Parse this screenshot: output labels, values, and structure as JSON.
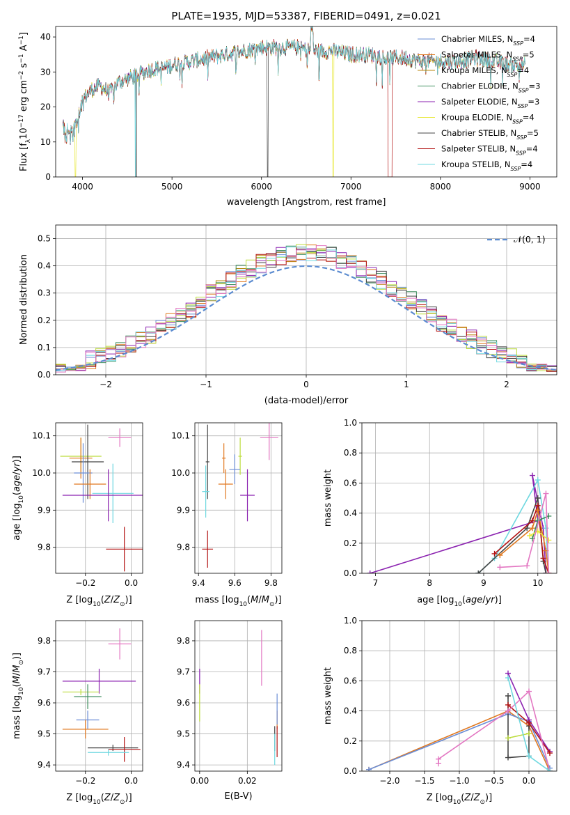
{
  "figure": {
    "title": "PLATE=1935, MJD=53387, FIBERID=0491, z=0.021"
  },
  "series_colors": {
    "Chabrier MILES": "#6a8dd6",
    "Salpeter MILES": "#e0781f",
    "Kroupa MILES": "#b8860b",
    "Chabrier ELODIE": "#3e8e5e",
    "Salpeter ELODIE": "#8b22b0",
    "Kroupa ELODIE": "#e8e838",
    "Chabrier STELIB": "#444444",
    "Salpeter STELIB": "#b31313",
    "Kroupa STELIB": "#6fd8e0",
    "pink": "#e377c2",
    "lime": "#bcdc3c"
  },
  "chart_data": [
    {
      "id": "spectrum",
      "type": "line",
      "title": "PLATE=1935, MJD=53387, FIBERID=0491, z=0.021",
      "xlabel": "wavelength [Angstrom, rest frame]",
      "ylabel": "Flux [f_λ 10^-17 erg cm^-2 s^-1 A^-1]",
      "xlim": [
        3700,
        9300
      ],
      "ylim": [
        0,
        43
      ],
      "xticks": [
        4000,
        5000,
        6000,
        7000,
        8000,
        9000
      ],
      "yticks": [
        0,
        10,
        20,
        30,
        40
      ],
      "grid": false,
      "legend_position": "top-right",
      "legend": [
        "Chabrier MILES, N_SSP=4",
        "Salpeter MILES, N_SSP=5",
        "Kroupa MILES, N_SSP=4",
        "Chabrier ELODIE, N_SSP=3",
        "Salpeter ELODIE, N_SSP=3",
        "Kroupa ELODIE, N_SSP=4",
        "Chabrier STELIB, N_SSP=5",
        "Salpeter STELIB, N_SSP=4",
        "Kroupa STELIB, N_SSP=4"
      ],
      "envelope": {
        "x": [
          3780,
          3850,
          3900,
          3950,
          4000,
          4100,
          4200,
          4300,
          4400,
          4500,
          4600,
          4700,
          4800,
          4900,
          5000,
          5200,
          5400,
          5600,
          5800,
          6000,
          6200,
          6400,
          6600,
          6800,
          7000,
          7200,
          7400,
          7600,
          7800,
          8000,
          8200,
          8400,
          8600,
          8800,
          8950
        ],
        "y": [
          14,
          13,
          15,
          17,
          22,
          25,
          26,
          24,
          27,
          28,
          29,
          30,
          31,
          31,
          32,
          33,
          34,
          35,
          36,
          37,
          37,
          37,
          36,
          36,
          35,
          35,
          34,
          34,
          33,
          33,
          33,
          34,
          33,
          32,
          32
        ]
      }
    },
    {
      "id": "residuals",
      "type": "area",
      "xlabel": "(data-model)/error",
      "ylabel": "Normed distribution",
      "xlim": [
        -2.5,
        2.5
      ],
      "ylim": [
        0,
        0.55
      ],
      "xticks": [
        -2,
        -1,
        0,
        1,
        2
      ],
      "yticks": [
        0.0,
        0.1,
        0.2,
        0.3,
        0.4,
        0.5
      ],
      "grid": true,
      "legend_position": "top-right",
      "legend": [
        "𝒩(0, 1)"
      ]
    },
    {
      "id": "age-vs-z",
      "type": "scatter",
      "xlabel": "Z [log10(Z/Z☉)]",
      "ylabel": "age [log10(age/yr)]",
      "xlim": [
        -0.33,
        0.05
      ],
      "ylim": [
        9.73,
        10.135
      ],
      "xticks": [
        -0.2,
        0.0
      ],
      "yticks": [
        9.8,
        9.9,
        10.0,
        10.1
      ],
      "grid": true,
      "points": [
        {
          "series": "pink",
          "x": -0.05,
          "y": 10.095,
          "xerr": 0.05,
          "yerr": 0.025
        },
        {
          "series": "lime",
          "x": -0.22,
          "y": 10.045,
          "xerr": 0.09,
          "yerr": 0.05
        },
        {
          "series": "Salpeter MILES",
          "x": -0.22,
          "y": 10.04,
          "xerr": 0.05,
          "yerr": 0.055
        },
        {
          "series": "Chabrier STELIB",
          "x": -0.19,
          "y": 10.03,
          "xerr": 0.07,
          "yerr": 0.1
        },
        {
          "series": "Chabrier MILES",
          "x": -0.21,
          "y": 10.0,
          "xerr": 0.04,
          "yerr": 0.08
        },
        {
          "series": "Salpeter MILES",
          "x": -0.18,
          "y": 9.97,
          "xerr": 0.07,
          "yerr": 0.04
        },
        {
          "series": "Kroupa STELIB",
          "x": -0.08,
          "y": 9.945,
          "xerr": 0.09,
          "yerr": 0.08
        },
        {
          "series": "Salpeter ELODIE",
          "x": -0.1,
          "y": 9.94,
          "xerr": 0.2,
          "yerr": 0.07
        },
        {
          "series": "Salpeter STELIB",
          "x": -0.03,
          "y": 9.795,
          "xerr": 0.08,
          "yerr": 0.06
        }
      ]
    },
    {
      "id": "age-vs-mass",
      "type": "scatter",
      "xlabel": "mass [log10(M/M☉)]",
      "ylabel": "",
      "xlim": [
        9.38,
        9.86
      ],
      "ylim": [
        9.73,
        10.135
      ],
      "xticks": [
        9.4,
        9.6,
        9.8
      ],
      "yticks": [
        9.8,
        9.9,
        10.0,
        10.1
      ],
      "grid": true,
      "points": [
        {
          "series": "pink",
          "x": 9.79,
          "y": 10.095,
          "xerr": 0.05,
          "yerr": 0.06
        },
        {
          "series": "lime",
          "x": 9.63,
          "y": 10.045,
          "xerr": 0.01,
          "yerr": 0.05
        },
        {
          "series": "Salpeter MILES",
          "x": 9.54,
          "y": 10.04,
          "xerr": 0.01,
          "yerr": 0.04
        },
        {
          "series": "Chabrier STELIB",
          "x": 9.45,
          "y": 10.03,
          "xerr": 0.01,
          "yerr": 0.1
        },
        {
          "series": "Chabrier MILES",
          "x": 9.6,
          "y": 10.01,
          "xerr": 0.03,
          "yerr": 0.04
        },
        {
          "series": "Salpeter MILES",
          "x": 9.55,
          "y": 9.97,
          "xerr": 0.04,
          "yerr": 0.04
        },
        {
          "series": "Kroupa STELIB",
          "x": 9.44,
          "y": 9.95,
          "xerr": 0.02,
          "yerr": 0.07
        },
        {
          "series": "Salpeter ELODIE",
          "x": 9.67,
          "y": 9.94,
          "xerr": 0.04,
          "yerr": 0.07
        },
        {
          "series": "Salpeter STELIB",
          "x": 9.45,
          "y": 9.795,
          "xerr": 0.03,
          "yerr": 0.05
        }
      ]
    },
    {
      "id": "weight-vs-age",
      "type": "line",
      "xlabel": "age [log10(age/yr)]",
      "ylabel": "mass weight",
      "xlim": [
        6.75,
        10.35
      ],
      "ylim": [
        0,
        1.0
      ],
      "xticks": [
        7,
        8,
        9,
        10
      ],
      "yticks": [
        0.0,
        0.2,
        0.4,
        0.6,
        0.8,
        1.0
      ],
      "grid": true,
      "series": [
        {
          "name": "Salpeter ELODIE",
          "x": [
            6.9,
            10.0,
            9.9,
            10.1,
            10.15
          ],
          "y": [
            0.0,
            0.35,
            0.65,
            0.3,
            0.0
          ]
        },
        {
          "name": "Kroupa STELIB",
          "x": [
            8.9,
            9.2,
            10.0,
            10.15,
            10.2
          ],
          "y": [
            0.0,
            0.1,
            0.62,
            0.3,
            0.0
          ]
        },
        {
          "name": "Chabrier STELIB",
          "x": [
            8.9,
            9.8,
            10.0,
            10.1,
            10.15
          ],
          "y": [
            0.0,
            0.3,
            0.5,
            0.08,
            0.0
          ]
        },
        {
          "name": "Salpeter STELIB",
          "x": [
            9.2,
            9.9,
            10.0,
            10.1,
            10.2
          ],
          "y": [
            0.13,
            0.35,
            0.45,
            0.1,
            0.0
          ]
        },
        {
          "name": "Salpeter MILES",
          "x": [
            9.3,
            9.9,
            10.0,
            10.15,
            10.2
          ],
          "y": [
            0.12,
            0.3,
            0.42,
            0.15,
            0.0
          ]
        },
        {
          "name": "Chabrier ELODIE",
          "x": [
            9.9,
            10.0,
            10.2
          ],
          "y": [
            0.23,
            0.35,
            0.38
          ]
        },
        {
          "name": "Kroupa ELODIE",
          "x": [
            9.85,
            10.0,
            10.2
          ],
          "y": [
            0.25,
            0.28,
            0.22
          ]
        },
        {
          "name": "pink",
          "x": [
            9.3,
            9.8,
            10.15,
            10.2
          ],
          "y": [
            0.04,
            0.05,
            0.53,
            0.0
          ]
        }
      ]
    },
    {
      "id": "mass-vs-z",
      "type": "scatter",
      "xlabel": "Z [log10(Z/Z☉)]",
      "ylabel": "mass [log10(M/M☉)]",
      "xlim": [
        -0.33,
        0.05
      ],
      "ylim": [
        9.38,
        9.865
      ],
      "xticks": [
        -0.2,
        0.0
      ],
      "yticks": [
        9.4,
        9.5,
        9.6,
        9.7,
        9.8
      ],
      "grid": true,
      "points": [
        {
          "series": "pink",
          "x": -0.05,
          "y": 9.79,
          "xerr": 0.05,
          "yerr": 0.05
        },
        {
          "series": "Salpeter ELODIE",
          "x": -0.14,
          "y": 9.67,
          "xerr": 0.16,
          "yerr": 0.04
        },
        {
          "series": "lime",
          "x": -0.22,
          "y": 9.635,
          "xerr": 0.08,
          "yerr": 0.01
        },
        {
          "series": "Chabrier ELODIE",
          "x": -0.19,
          "y": 9.62,
          "xerr": 0.06,
          "yerr": 0.04
        },
        {
          "series": "Chabrier MILES",
          "x": -0.19,
          "y": 9.545,
          "xerr": 0.05,
          "yerr": 0.03
        },
        {
          "series": "Salpeter MILES",
          "x": -0.2,
          "y": 9.515,
          "xerr": 0.1,
          "yerr": 0.03
        },
        {
          "series": "Chabrier STELIB",
          "x": -0.08,
          "y": 9.455,
          "xerr": 0.11,
          "yerr": 0.01
        },
        {
          "series": "Salpeter STELIB",
          "x": -0.03,
          "y": 9.45,
          "xerr": 0.07,
          "yerr": 0.04
        },
        {
          "series": "Kroupa STELIB",
          "x": -0.1,
          "y": 9.44,
          "xerr": 0.09,
          "yerr": 0.01
        }
      ]
    },
    {
      "id": "mass-vs-ebv",
      "type": "scatter",
      "xlabel": "E(B-V)",
      "ylabel": "",
      "xlim": [
        -0.002,
        0.0345
      ],
      "ylim": [
        9.38,
        9.865
      ],
      "xticks": [
        0.0,
        0.02
      ],
      "yticks": [
        9.4,
        9.5,
        9.6,
        9.7,
        9.8
      ],
      "grid": true,
      "points": [
        {
          "series": "pink",
          "x": 0.026,
          "y": 9.745,
          "xerr": 0,
          "yerr": 0.09
        },
        {
          "series": "Salpeter ELODIE",
          "x": 0.0,
          "y": 9.67,
          "xerr": 0,
          "yerr": 0.04
        },
        {
          "series": "lime",
          "x": 0.0,
          "y": 9.6,
          "xerr": 0,
          "yerr": 0.06
        },
        {
          "series": "Salpeter MILES",
          "x": 0.0325,
          "y": 9.545,
          "xerr": 0,
          "yerr": 0.03
        },
        {
          "series": "Chabrier STELIB",
          "x": 0.0315,
          "y": 9.485,
          "xerr": 0,
          "yerr": 0.04
        },
        {
          "series": "Salpeter STELIB",
          "x": 0.0325,
          "y": 9.475,
          "xerr": 0,
          "yerr": 0.05
        },
        {
          "series": "Kroupa STELIB",
          "x": 0.0315,
          "y": 9.45,
          "xerr": 0,
          "yerr": 0.05
        },
        {
          "series": "Chabrier MILES",
          "x": 0.0325,
          "y": 9.58,
          "xerr": 0,
          "yerr": 0.05
        }
      ]
    },
    {
      "id": "weight-vs-z",
      "type": "line",
      "xlabel": "Z [log10(Z/Z☉)]",
      "ylabel": "mass weight",
      "xlim": [
        -2.4,
        0.4
      ],
      "ylim": [
        0,
        1.0
      ],
      "xticks": [
        -2.0,
        -1.5,
        -1.0,
        -0.5,
        0.0
      ],
      "yticks": [
        0.0,
        0.2,
        0.4,
        0.6,
        0.8,
        1.0
      ],
      "grid": true,
      "series": [
        {
          "name": "Salpeter MILES",
          "x": [
            -2.3,
            -0.3,
            0.0,
            0.3
          ],
          "y": [
            0.01,
            0.4,
            0.3,
            0.0
          ]
        },
        {
          "name": "Chabrier MILES",
          "x": [
            -2.3,
            -0.3,
            0.0,
            0.3
          ],
          "y": [
            0.01,
            0.38,
            0.33,
            0.02
          ]
        },
        {
          "name": "Salpeter ELODIE",
          "x": [
            -0.3,
            0.0,
            0.3
          ],
          "y": [
            0.65,
            0.34,
            0.13
          ]
        },
        {
          "name": "Chabrier STELIB",
          "x": [
            -0.3,
            -0.3,
            0.0,
            0.0
          ],
          "y": [
            0.5,
            0.09,
            0.1,
            0.3
          ]
        },
        {
          "name": "Salpeter STELIB",
          "x": [
            -0.3,
            0.0,
            0.3
          ],
          "y": [
            0.44,
            0.32,
            0.12
          ]
        },
        {
          "name": "pink",
          "x": [
            -1.3,
            -1.3,
            -0.3,
            0.0,
            0.3
          ],
          "y": [
            0.05,
            0.08,
            0.4,
            0.53,
            0.0
          ]
        },
        {
          "name": "lime",
          "x": [
            -0.3,
            0.0
          ],
          "y": [
            0.22,
            0.25
          ]
        },
        {
          "name": "Kroupa STELIB",
          "x": [
            -0.3,
            0.0,
            0.3
          ],
          "y": [
            0.62,
            0.1,
            0.0
          ]
        }
      ]
    }
  ]
}
